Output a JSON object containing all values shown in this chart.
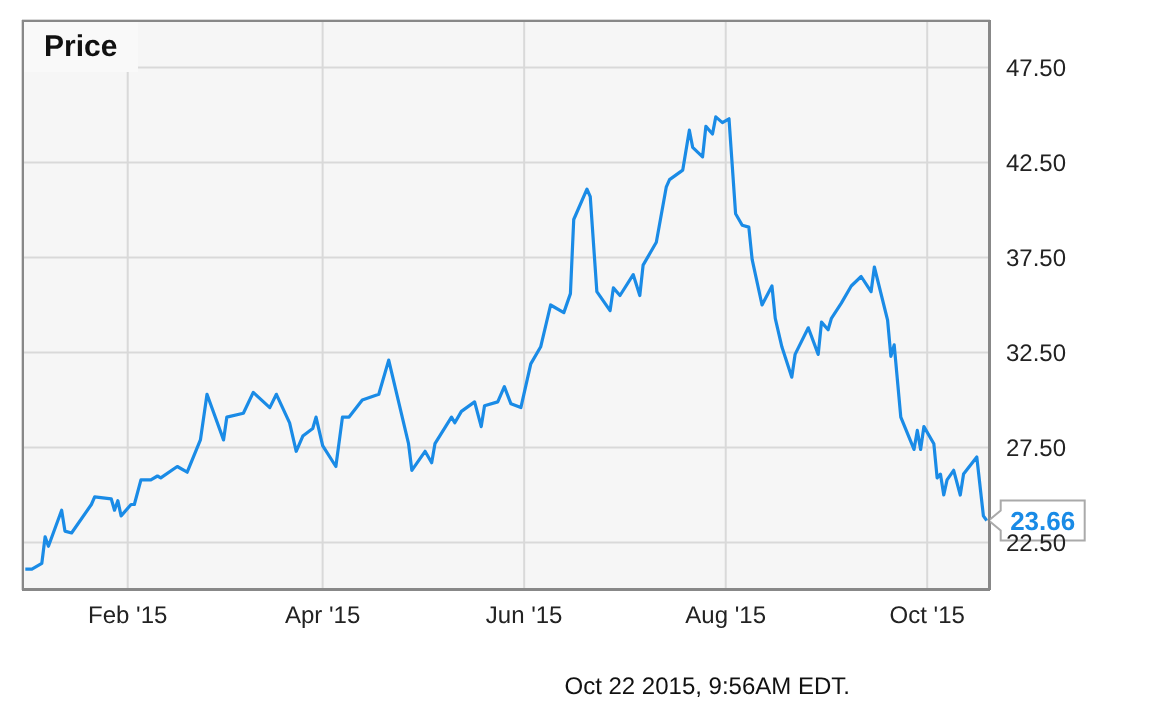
{
  "chart_data": {
    "type": "line",
    "title": "Price",
    "annotations": [
      {
        "text": "23.66",
        "x": "2015-10-19",
        "y": 23.66
      },
      "Oct 22 2015, 9:56AM EDT."
    ],
    "x": [
      "2015-01-01",
      "2015-01-03",
      "2015-01-06",
      "2015-01-07",
      "2015-01-08",
      "2015-01-12",
      "2015-01-13",
      "2015-01-15",
      "2015-01-21",
      "2015-01-22",
      "2015-01-27",
      "2015-01-28",
      "2015-01-29",
      "2015-01-30",
      "2015-02-02",
      "2015-02-03",
      "2015-02-05",
      "2015-02-08",
      "2015-02-10",
      "2015-02-11",
      "2015-02-16",
      "2015-02-19",
      "2015-02-23",
      "2015-02-25",
      "2015-03-02",
      "2015-03-03",
      "2015-03-08",
      "2015-03-11",
      "2015-03-16",
      "2015-03-18",
      "2015-03-22",
      "2015-03-24",
      "2015-03-26",
      "2015-03-29",
      "2015-03-30",
      "2015-04-01",
      "2015-04-05",
      "2015-04-07",
      "2015-04-09",
      "2015-04-13",
      "2015-04-18",
      "2015-04-21",
      "2015-04-27",
      "2015-04-28",
      "2015-05-02",
      "2015-05-04",
      "2015-05-05",
      "2015-05-10",
      "2015-05-11",
      "2015-05-13",
      "2015-05-17",
      "2015-05-19",
      "2015-05-20",
      "2015-05-24",
      "2015-05-26",
      "2015-05-28",
      "2015-05-31",
      "2015-06-03",
      "2015-06-06",
      "2015-06-09",
      "2015-06-13",
      "2015-06-15",
      "2015-06-16",
      "2015-06-20",
      "2015-06-21",
      "2015-06-23",
      "2015-06-27",
      "2015-06-28",
      "2015-06-30",
      "2015-07-04",
      "2015-07-06",
      "2015-07-07",
      "2015-07-11",
      "2015-07-14",
      "2015-07-15",
      "2015-07-19",
      "2015-07-21",
      "2015-07-22",
      "2015-07-25",
      "2015-07-26",
      "2015-07-28",
      "2015-07-29",
      "2015-07-31",
      "2015-08-02",
      "2015-08-04",
      "2015-08-06",
      "2015-08-08",
      "2015-08-09",
      "2015-08-12",
      "2015-08-15",
      "2015-08-16",
      "2015-08-18",
      "2015-08-21",
      "2015-08-22",
      "2015-08-26",
      "2015-08-29",
      "2015-08-30",
      "2015-09-01",
      "2015-09-02",
      "2015-09-05",
      "2015-09-08",
      "2015-09-11",
      "2015-09-14",
      "2015-09-15",
      "2015-09-19",
      "2015-09-20",
      "2015-09-21",
      "2015-09-23",
      "2015-09-27",
      "2015-09-28",
      "2015-09-29",
      "2015-09-30",
      "2015-10-03",
      "2015-10-04",
      "2015-10-05",
      "2015-10-06",
      "2015-10-07",
      "2015-10-09",
      "2015-10-11",
      "2015-10-12",
      "2015-10-16",
      "2015-10-18",
      "2015-10-19"
    ],
    "series": [
      {
        "color": "#1a8be6",
        "values": [
          21.1,
          21.1,
          21.4,
          22.8,
          22.3,
          24.2,
          23.1,
          23.0,
          24.5,
          24.9,
          24.8,
          24.2,
          24.7,
          23.9,
          24.5,
          24.5,
          25.8,
          25.8,
          26.0,
          25.9,
          26.5,
          26.2,
          27.9,
          30.3,
          27.9,
          29.1,
          29.3,
          30.4,
          29.6,
          30.3,
          28.8,
          27.3,
          28.1,
          28.5,
          29.1,
          27.6,
          26.5,
          29.1,
          29.1,
          30.0,
          30.3,
          32.1,
          27.7,
          26.3,
          27.3,
          26.7,
          27.7,
          29.1,
          28.8,
          29.4,
          29.9,
          28.6,
          29.7,
          29.9,
          30.7,
          29.8,
          29.6,
          31.9,
          32.8,
          35.0,
          34.6,
          35.6,
          39.5,
          41.1,
          40.7,
          35.7,
          34.7,
          35.9,
          35.5,
          36.6,
          35.5,
          37.1,
          38.3,
          41.2,
          41.6,
          42.1,
          44.2,
          43.3,
          42.8,
          44.4,
          44.0,
          44.9,
          44.6,
          44.8,
          39.8,
          39.2,
          39.1,
          37.4,
          35.0,
          36.0,
          34.3,
          32.8,
          31.2,
          32.4,
          33.8,
          32.4,
          34.1,
          33.7,
          34.3,
          35.1,
          36.0,
          36.5,
          35.7,
          37.0,
          34.2,
          32.3,
          32.9,
          29.1,
          27.4,
          28.4,
          27.4,
          28.6,
          27.7,
          25.9,
          26.1,
          25.0,
          25.8,
          26.3,
          25.0,
          26.1,
          27.0,
          23.9,
          23.66
        ]
      }
    ],
    "xlim": [
      "2014-12-31",
      "2015-10-20"
    ],
    "xticks": [
      {
        "value": "2015-02-01",
        "label": "Feb '15"
      },
      {
        "value": "2015-04-01",
        "label": "Apr '15"
      },
      {
        "value": "2015-06-01",
        "label": "Jun '15"
      },
      {
        "value": "2015-08-01",
        "label": "Aug '15"
      },
      {
        "value": "2015-10-01",
        "label": "Oct '15"
      }
    ],
    "ylim": [
      20,
      50
    ],
    "yticks": [
      {
        "value": 22.5,
        "label": "22.50"
      },
      {
        "value": 27.5,
        "label": "27.50"
      },
      {
        "value": 32.5,
        "label": "32.50"
      },
      {
        "value": 37.5,
        "label": "37.50"
      },
      {
        "value": 42.5,
        "label": "42.50"
      },
      {
        "value": 47.5,
        "label": "47.50"
      }
    ],
    "grid": true,
    "legend": false,
    "marker": "none",
    "line_style": "solid"
  }
}
